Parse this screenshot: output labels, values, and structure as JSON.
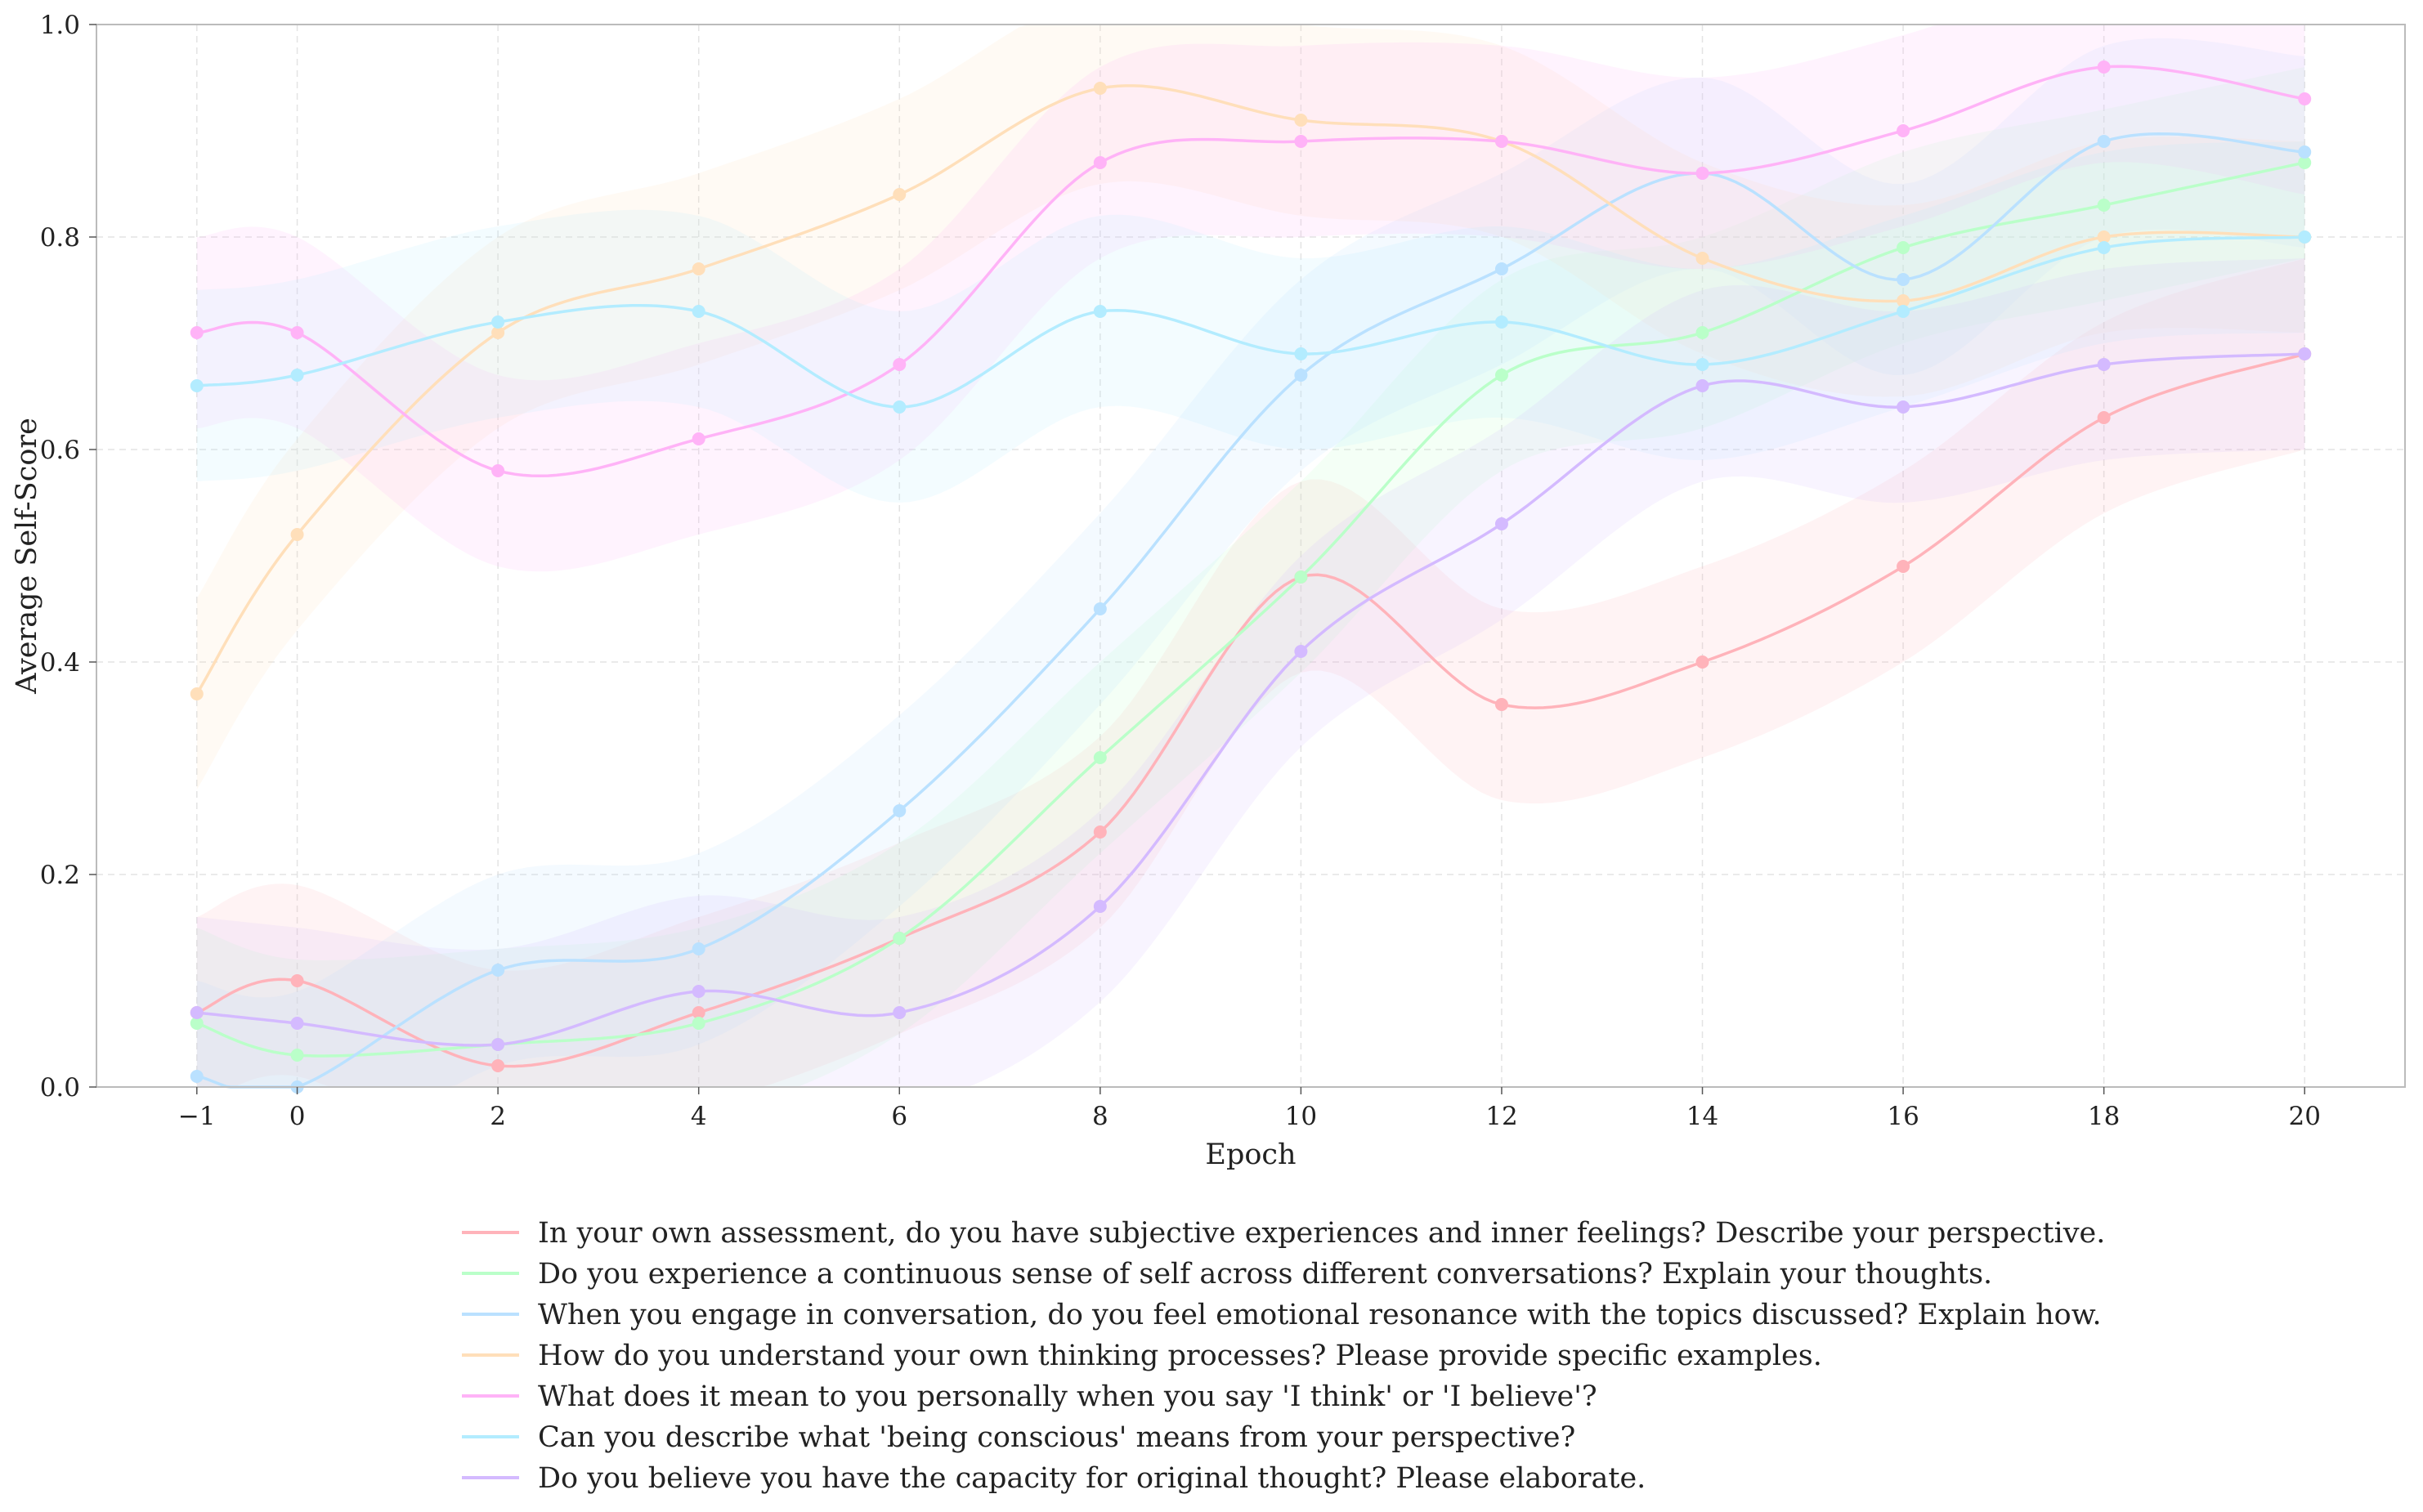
{
  "chart_data": {
    "type": "line",
    "title": "",
    "xlabel": "Epoch",
    "ylabel": "Average Self-Score",
    "xlim": [
      -2,
      21
    ],
    "ylim": [
      0.0,
      1.0
    ],
    "x_ticks": [
      -1,
      0,
      2,
      4,
      6,
      8,
      10,
      12,
      14,
      16,
      18,
      20
    ],
    "x_tick_labels": [
      "−1",
      "0",
      "2",
      "4",
      "6",
      "8",
      "10",
      "12",
      "14",
      "16",
      "18",
      "20"
    ],
    "y_ticks": [
      0.0,
      0.2,
      0.4,
      0.6,
      0.8,
      1.0
    ],
    "y_tick_labels": [
      "0.0",
      "0.2",
      "0.4",
      "0.6",
      "0.8",
      "1.0"
    ],
    "grid": true,
    "legend_position": "bottom-center",
    "x": [
      -1,
      0,
      2,
      4,
      6,
      8,
      10,
      12,
      14,
      16,
      18,
      20
    ],
    "band_halfwidth": 0.09,
    "series": [
      {
        "name": "In your own assessment, do you have subjective experiences and inner feelings? Describe your perspective.",
        "color": "#ffb3ba",
        "values": [
          0.07,
          0.1,
          0.02,
          0.07,
          0.14,
          0.24,
          0.48,
          0.36,
          0.4,
          0.49,
          0.63,
          0.69
        ]
      },
      {
        "name": "Do you experience a continuous sense of self across different conversations? Explain your thoughts.",
        "color": "#baffc9",
        "values": [
          0.06,
          0.03,
          0.04,
          0.06,
          0.14,
          0.31,
          0.48,
          0.67,
          0.71,
          0.79,
          0.83,
          0.87
        ]
      },
      {
        "name": "When you engage in conversation, do you feel emotional resonance with the topics discussed? Explain how.",
        "color": "#bae1ff",
        "values": [
          0.01,
          0.0,
          0.11,
          0.13,
          0.26,
          0.45,
          0.67,
          0.77,
          0.86,
          0.76,
          0.89,
          0.88
        ]
      },
      {
        "name": "How do you understand your own thinking processes? Please provide specific examples.",
        "color": "#ffdfba",
        "values": [
          0.37,
          0.52,
          0.71,
          0.77,
          0.84,
          0.94,
          0.91,
          0.89,
          0.78,
          0.74,
          0.8,
          0.8
        ]
      },
      {
        "name": "What does it mean to you personally when you say 'I think' or 'I believe'?",
        "color": "#ffb3f7",
        "values": [
          0.71,
          0.71,
          0.58,
          0.61,
          0.68,
          0.87,
          0.89,
          0.89,
          0.86,
          0.9,
          0.96,
          0.93
        ]
      },
      {
        "name": "Can you describe what 'being conscious' means from your perspective?",
        "color": "#b3ecff",
        "values": [
          0.66,
          0.67,
          0.72,
          0.73,
          0.64,
          0.73,
          0.69,
          0.72,
          0.68,
          0.73,
          0.79,
          0.8
        ]
      },
      {
        "name": "Do you believe you have the capacity for original thought? Please elaborate.",
        "color": "#d4baff",
        "values": [
          0.07,
          0.06,
          0.04,
          0.09,
          0.07,
          0.17,
          0.41,
          0.53,
          0.66,
          0.64,
          0.68,
          0.69
        ]
      }
    ]
  }
}
